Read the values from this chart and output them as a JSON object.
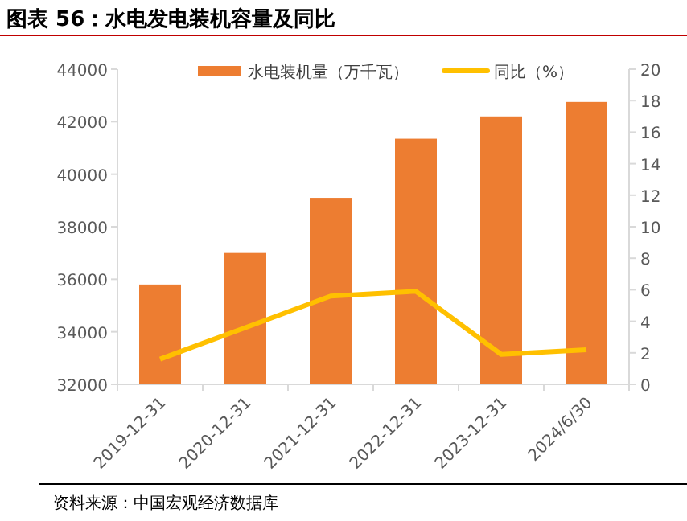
{
  "chart_data": {
    "type": "bar",
    "title": "图表 56：水电发电装机容量及同比",
    "categories": [
      "2019-12-31",
      "2020-12-31",
      "2021-12-31",
      "2022-12-31",
      "2023-12-31",
      "2024/6/30"
    ],
    "series": [
      {
        "name": "水电装机量（万千瓦）",
        "color": "#ed7d31",
        "values": [
          35800,
          37000,
          39100,
          41350,
          42200,
          42750
        ]
      },
      {
        "name": "同比（%）",
        "type": "line",
        "axis": "y2",
        "color": "#ffc000",
        "values": [
          1.6,
          3.6,
          5.6,
          5.9,
          1.9,
          2.2
        ]
      }
    ],
    "ylim": [
      32000,
      44000
    ],
    "yticks": [
      32000,
      34000,
      36000,
      38000,
      40000,
      42000,
      44000
    ],
    "y2lim": [
      0,
      20
    ],
    "y2ticks": [
      0,
      2,
      4,
      6,
      8,
      10,
      12,
      14,
      16,
      18,
      20
    ],
    "legend": "top",
    "grid": false,
    "marker": "none",
    "line_style": "solid",
    "annotations": [
      "资料来源：中国宏观经济数据库"
    ]
  }
}
